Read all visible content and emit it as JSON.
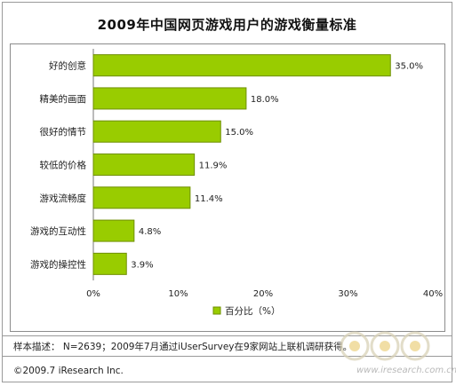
{
  "title": "2009年中国网页游戏用户的游戏衡量标准",
  "sample_note": "样本描述： N=2639；2009年7月通过iUserSurvey在9家网站上联机调研获得。",
  "copyright": "©2009.7 iResearch Inc.",
  "watermark_url": "www.iresearch.com.cn",
  "colors": {
    "bar": "#99cc00",
    "bar_border": "#6f8f00",
    "axis": "#777777",
    "grid": "#bfbfbf",
    "text": "#222222"
  },
  "chart_data": {
    "type": "bar",
    "orientation": "horizontal",
    "categories": [
      "好的创意",
      "精美的画面",
      "很好的情节",
      "较低的价格",
      "游戏流畅度",
      "游戏的互动性",
      "游戏的操控性"
    ],
    "values": [
      35.0,
      18.0,
      15.0,
      11.9,
      11.4,
      4.8,
      3.9
    ],
    "value_labels": [
      "35.0%",
      "18.0%",
      "15.0%",
      "11.9%",
      "11.4%",
      "4.8%",
      "3.9%"
    ],
    "x_ticks": [
      0,
      10,
      20,
      30,
      40
    ],
    "x_tick_labels": [
      "0%",
      "10%",
      "20%",
      "30%",
      "40%"
    ],
    "xlim": [
      0,
      40
    ],
    "title": "2009年中国网页游戏用户的游戏衡量标准",
    "xlabel": "",
    "ylabel": "",
    "legend": [
      {
        "name": "百分比（%）",
        "color": "#99cc00"
      }
    ],
    "legend_position": "bottom-center",
    "grid": false
  }
}
